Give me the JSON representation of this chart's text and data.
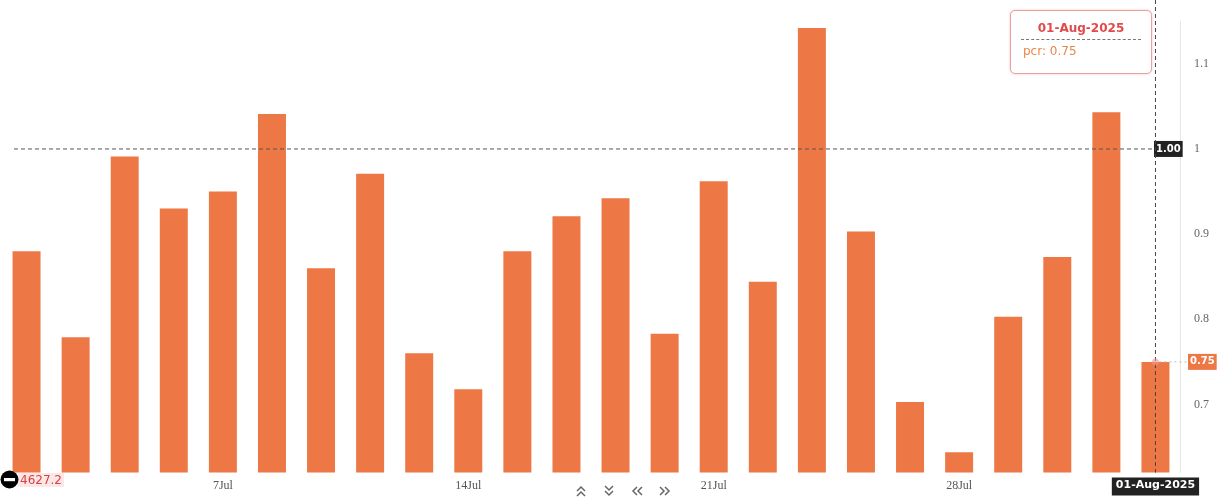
{
  "chart_data": {
    "type": "bar",
    "categories": [
      null,
      null,
      null,
      null,
      "7Jul",
      null,
      null,
      null,
      null,
      "14Jul",
      null,
      null,
      null,
      null,
      "21Jul",
      null,
      null,
      null,
      null,
      "28Jul",
      null,
      null,
      null,
      "01-Aug-2025"
    ],
    "values": [
      0.88,
      0.779,
      0.991,
      0.93,
      0.95,
      1.041,
      0.86,
      0.971,
      0.76,
      0.718,
      0.88,
      0.921,
      0.942,
      0.783,
      0.962,
      0.844,
      1.142,
      0.903,
      0.703,
      0.644,
      0.803,
      0.873,
      1.043,
      0.75
    ],
    "color": "#ed7745",
    "ylim": [
      0.62,
      1.15
    ],
    "yticks": [
      0.7,
      0.8,
      0.9,
      1,
      1.1
    ],
    "grid": false,
    "legend": false,
    "ref_lines": [
      {
        "axis": "y",
        "value": 1.0,
        "label": "1.00",
        "color": "#555555",
        "line_style": "dashed"
      },
      {
        "axis": "x",
        "value": "01-Aug-2025",
        "color": "#444444",
        "line_style": "dashed"
      }
    ],
    "annotations": [
      "01-Aug-2025",
      "pcr: 0.75",
      "4627.2",
      {
        "text": "0.75",
        "x": "01-Aug-2025",
        "y": 0.75
      }
    ]
  }
}
